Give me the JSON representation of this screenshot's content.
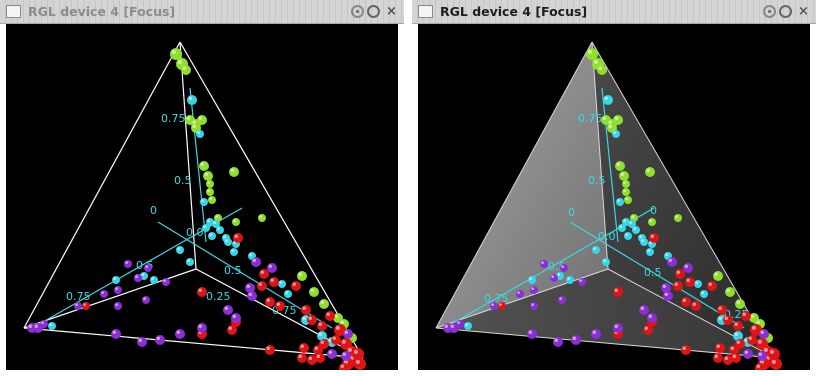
{
  "windows": [
    {
      "title": "RGL device 4 [Focus]",
      "surfaces_visible": false,
      "axis_ticks": [
        "0.75",
        "0.5",
        "0",
        "0.0",
        "0.5",
        "0.75",
        "0.5",
        "0.25",
        "0.75"
      ]
    },
    {
      "title": "RGL device 4 [Focus]",
      "surfaces_visible": true,
      "axis_ticks": [
        "0.75",
        "0.5",
        "0",
        "0",
        "0.0",
        "0.5",
        "0.75",
        "0.5",
        "0.25"
      ]
    }
  ],
  "icons": [
    "window-menu-icon",
    "shade-button-icon",
    "maximize-button-icon",
    "close-button-icon"
  ],
  "colors": {
    "edges": "#ffffff",
    "axes": "#3ad8e4",
    "surface": "#9a9a9a",
    "group_green": "#8ee02a",
    "group_cyan": "#36d6e8",
    "group_red": "#e01414",
    "group_purple": "#8b2ed6"
  }
}
